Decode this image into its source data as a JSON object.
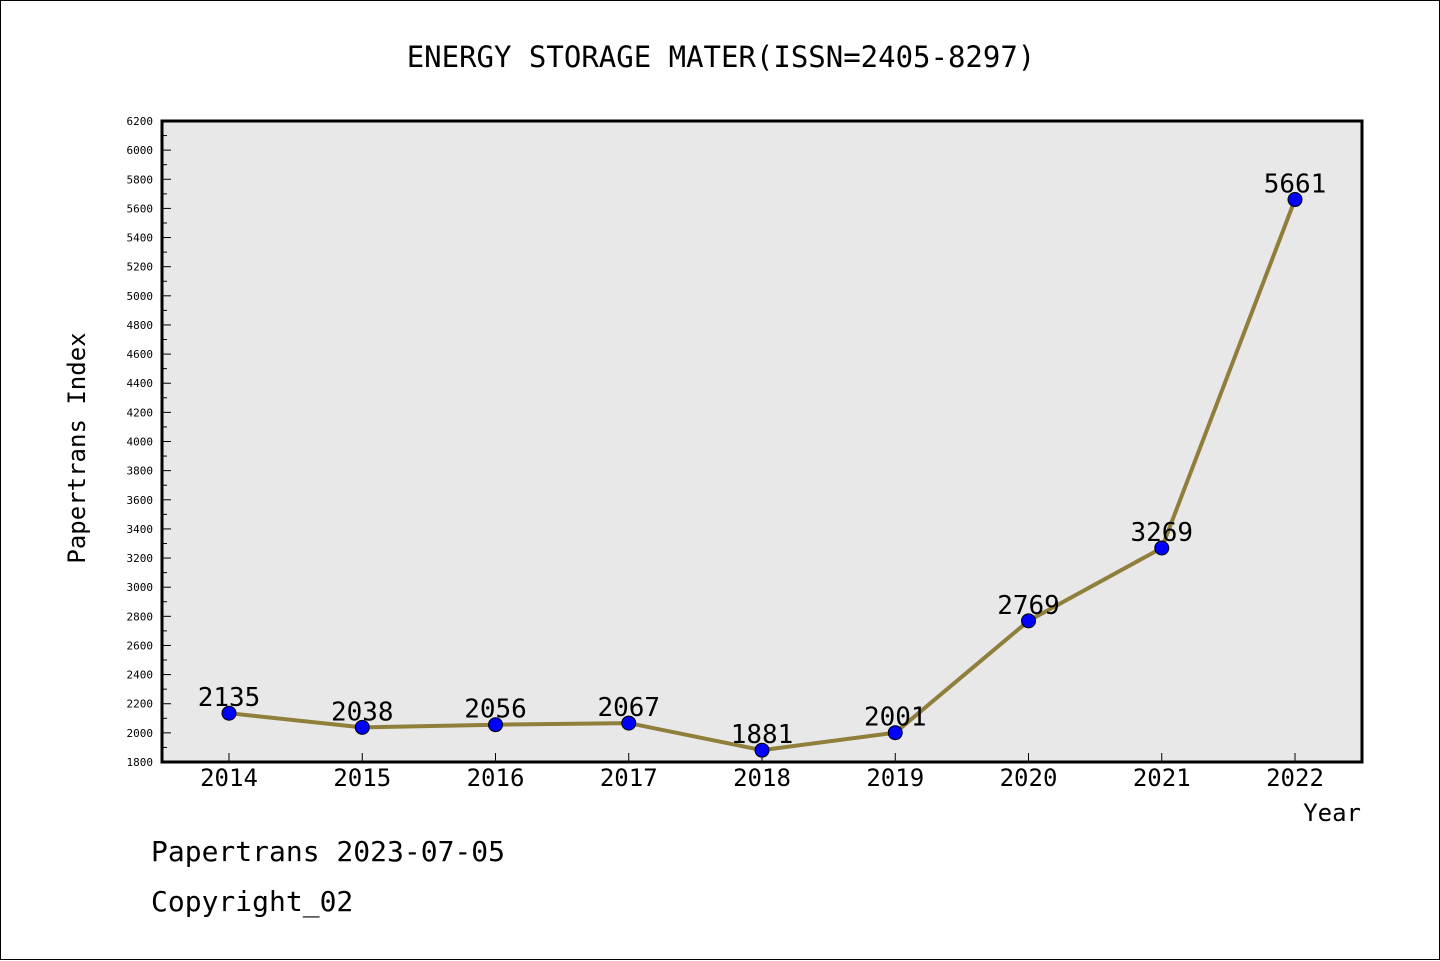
{
  "chart_data": {
    "type": "line",
    "title": "ENERGY STORAGE MATER(ISSN=2405-8297)",
    "xlabel": "Year",
    "ylabel": "Papertrans Index",
    "categories": [
      "2014",
      "2015",
      "2016",
      "2017",
      "2018",
      "2019",
      "2020",
      "2021",
      "2022"
    ],
    "series": [
      {
        "values": [
          2135,
          2038,
          2056,
          2067,
          1881,
          2001,
          2769,
          3269,
          5661
        ],
        "data_labels": [
          "2135",
          "2038",
          "2056",
          "2067",
          "1881",
          "2001",
          "2769",
          "3269",
          "5661"
        ]
      }
    ],
    "ylim": [
      1800,
      6200
    ],
    "ytick_step": 200,
    "yminor_step": 100,
    "grid": false,
    "legend": "none",
    "colors": {
      "line": "#8f7f3a",
      "marker": "#0000ff",
      "plot_background": "#e8e8e8",
      "axis": "#000000"
    }
  },
  "footer": {
    "line1": "Papertrans 2023-07-05",
    "line2": "Copyright_02"
  }
}
